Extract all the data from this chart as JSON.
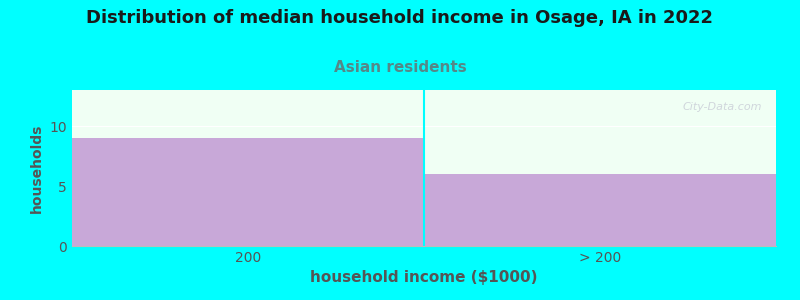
{
  "title": "Distribution of median household income in Osage, IA in 2022",
  "subtitle": "Asian residents",
  "xlabel": "household income ($1000)",
  "ylabel": "households",
  "categories": [
    "200",
    "> 200"
  ],
  "values": [
    9,
    6
  ],
  "bar_color": "#C8A8D8",
  "background_color": "#00FFFF",
  "plot_bg_color": "#F0FFF4",
  "title_fontsize": 13,
  "subtitle_fontsize": 11,
  "subtitle_color": "#558888",
  "xlabel_fontsize": 11,
  "ylabel_fontsize": 10,
  "tick_color": "#555555",
  "ylim": [
    0,
    13
  ],
  "yticks": [
    0,
    5,
    10
  ],
  "watermark": "City-Data.com",
  "title_color": "#1a1a1a",
  "axes_label_color": "#555555"
}
